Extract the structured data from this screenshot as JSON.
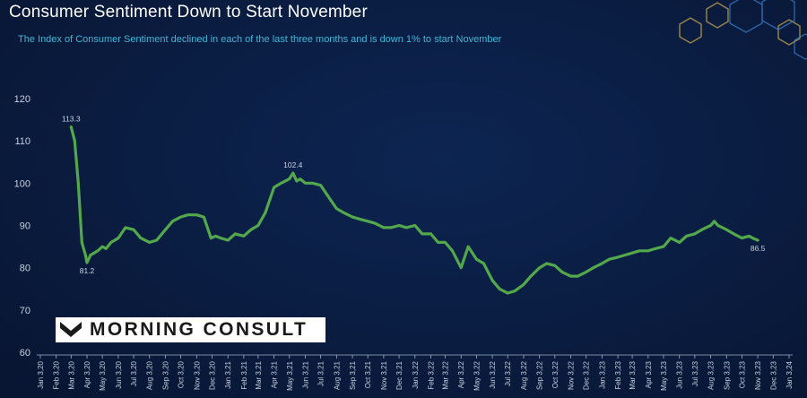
{
  "header": {
    "title": "Consumer Sentiment Down to Start November",
    "subtitle": "The Index of Consumer Sentiment declined in each of the last three months and is down 1% to start November"
  },
  "logo": {
    "text": "MORNING CONSULT"
  },
  "colors": {
    "line": "#52a84b",
    "background": "#0a1c40",
    "subtitle": "#3fb7d9",
    "axis_text": "#c8d1e0"
  },
  "chart_data": {
    "type": "line",
    "title": "Consumer Sentiment Down to Start November",
    "ylim": [
      60,
      120
    ],
    "yticks": [
      60,
      70,
      80,
      90,
      100,
      110,
      120
    ],
    "xticks": [
      "Jan 3,20",
      "Feb 3,20",
      "Mar 3,20",
      "Apr 3,20",
      "May 3,20",
      "Jun 3,20",
      "Jul 3,20",
      "Aug 3,20",
      "Sep 3,20",
      "Oct 3,20",
      "Nov 3,20",
      "Dec 3,20",
      "Jan 3,21",
      "Feb 3,21",
      "Mar 3,21",
      "Apr 3,21",
      "May 3,21",
      "Jun 3,21",
      "Jul 3,21",
      "Aug 3,21",
      "Sep 3,21",
      "Oct 3,21",
      "Nov 3,21",
      "Dec 3,21",
      "Jan 3,22",
      "Feb 3,22",
      "Mar 3,22",
      "Apr 3,22",
      "May 3,22",
      "Jun 3,22",
      "Jul 3,22",
      "Aug 3,22",
      "Sep 3,22",
      "Oct 3,22",
      "Nov 3,22",
      "Dec 3,22",
      "Jan 3,23",
      "Feb 3,23",
      "Mar 3,23",
      "Apr 3,23",
      "May 3,23",
      "Jun 3,23",
      "Jul 3,23",
      "Aug 3,23",
      "Sep 3,23",
      "Oct 3,23",
      "Nov 3,23",
      "Dec 3,23",
      "Jan 3,24"
    ],
    "grid": false,
    "series": [
      {
        "points": [
          [
            "Mar 3,20",
            113.3
          ],
          [
            "Mar 10,20",
            110
          ],
          [
            "Mar 17,20",
            100
          ],
          [
            "Mar 24,20",
            86
          ],
          [
            "Mar 31,20",
            83
          ],
          [
            "Apr 3,20",
            81.2
          ],
          [
            "Apr 10,20",
            83
          ],
          [
            "Apr 17,20",
            83.5
          ],
          [
            "Apr 24,20",
            84
          ],
          [
            "May 3,20",
            85
          ],
          [
            "May 10,20",
            84.5
          ],
          [
            "May 20,20",
            86
          ],
          [
            "Jun 3,20",
            87
          ],
          [
            "Jun 17,20",
            89.5
          ],
          [
            "Jul 3,20",
            89
          ],
          [
            "Jul 17,20",
            87
          ],
          [
            "Aug 3,20",
            86
          ],
          [
            "Aug 17,20",
            86.5
          ],
          [
            "Sep 3,20",
            89
          ],
          [
            "Sep 17,20",
            91
          ],
          [
            "Oct 3,20",
            92
          ],
          [
            "Oct 17,20",
            92.5
          ],
          [
            "Nov 3,20",
            92.5
          ],
          [
            "Nov 17,20",
            92
          ],
          [
            "Dec 1,20",
            87
          ],
          [
            "Dec 10,20",
            87.5
          ],
          [
            "Dec 20,20",
            87
          ],
          [
            "Jan 3,21",
            86.5
          ],
          [
            "Jan 17,21",
            88
          ],
          [
            "Feb 3,21",
            87.5
          ],
          [
            "Feb 17,21",
            89
          ],
          [
            "Mar 3,21",
            90
          ],
          [
            "Mar 17,21",
            93
          ],
          [
            "Apr 3,21",
            99
          ],
          [
            "Apr 17,21",
            100
          ],
          [
            "May 3,21",
            101
          ],
          [
            "May 10,21",
            102.4
          ],
          [
            "May 17,21",
            100.5
          ],
          [
            "May 24,21",
            101
          ],
          [
            "Jun 3,21",
            100
          ],
          [
            "Jun 17,21",
            100
          ],
          [
            "Jul 3,21",
            99.5
          ],
          [
            "Jul 17,21",
            97
          ],
          [
            "Aug 3,21",
            94
          ],
          [
            "Aug 17,21",
            93
          ],
          [
            "Sep 3,21",
            92
          ],
          [
            "Sep 17,21",
            91.5
          ],
          [
            "Oct 3,21",
            91
          ],
          [
            "Oct 17,21",
            90.5
          ],
          [
            "Nov 3,21",
            89.5
          ],
          [
            "Nov 17,21",
            89.5
          ],
          [
            "Dec 3,21",
            90
          ],
          [
            "Dec 17,21",
            89.5
          ],
          [
            "Jan 3,22",
            90
          ],
          [
            "Jan 17,22",
            88
          ],
          [
            "Feb 3,22",
            88
          ],
          [
            "Feb 17,22",
            86
          ],
          [
            "Mar 3,22",
            86
          ],
          [
            "Mar 17,22",
            84
          ],
          [
            "Apr 3,22",
            80
          ],
          [
            "Apr 17,22",
            85
          ],
          [
            "May 3,22",
            82
          ],
          [
            "May 17,22",
            81
          ],
          [
            "Jun 3,22",
            77
          ],
          [
            "Jun 17,22",
            75
          ],
          [
            "Jul 3,22",
            74
          ],
          [
            "Jul 17,22",
            74.5
          ],
          [
            "Aug 3,22",
            76
          ],
          [
            "Aug 17,22",
            78
          ],
          [
            "Sep 3,22",
            80
          ],
          [
            "Sep 17,22",
            81
          ],
          [
            "Oct 3,22",
            80.5
          ],
          [
            "Oct 17,22",
            79
          ],
          [
            "Nov 3,22",
            78
          ],
          [
            "Nov 17,22",
            78
          ],
          [
            "Dec 3,22",
            79
          ],
          [
            "Dec 17,22",
            80
          ],
          [
            "Jan 3,23",
            81
          ],
          [
            "Jan 17,23",
            82
          ],
          [
            "Feb 3,23",
            82.5
          ],
          [
            "Feb 17,23",
            83
          ],
          [
            "Mar 3,23",
            83.5
          ],
          [
            "Mar 17,23",
            84
          ],
          [
            "Apr 3,23",
            84
          ],
          [
            "Apr 17,23",
            84.5
          ],
          [
            "May 3,23",
            85
          ],
          [
            "May 17,23",
            87
          ],
          [
            "Jun 3,23",
            86
          ],
          [
            "Jun 17,23",
            87.5
          ],
          [
            "Jul 3,23",
            88
          ],
          [
            "Jul 17,23",
            89
          ],
          [
            "Aug 3,23",
            90
          ],
          [
            "Aug 10,23",
            91
          ],
          [
            "Aug 17,23",
            90
          ],
          [
            "Sep 3,23",
            89
          ],
          [
            "Sep 17,23",
            88
          ],
          [
            "Oct 3,23",
            87
          ],
          [
            "Oct 17,23",
            87.5
          ],
          [
            "Oct 24,23",
            87
          ],
          [
            "Nov 3,23",
            86.5
          ]
        ]
      }
    ],
    "annotations": [
      {
        "label": "113.3",
        "x": "Mar 3,20",
        "y": 113.3
      },
      {
        "label": "81.2",
        "x": "Apr 3,20",
        "y": 81.2
      },
      {
        "label": "102.4",
        "x": "May 10,21",
        "y": 102.4
      },
      {
        "label": "86.5",
        "x": "Nov 3,23",
        "y": 86.5
      }
    ]
  }
}
